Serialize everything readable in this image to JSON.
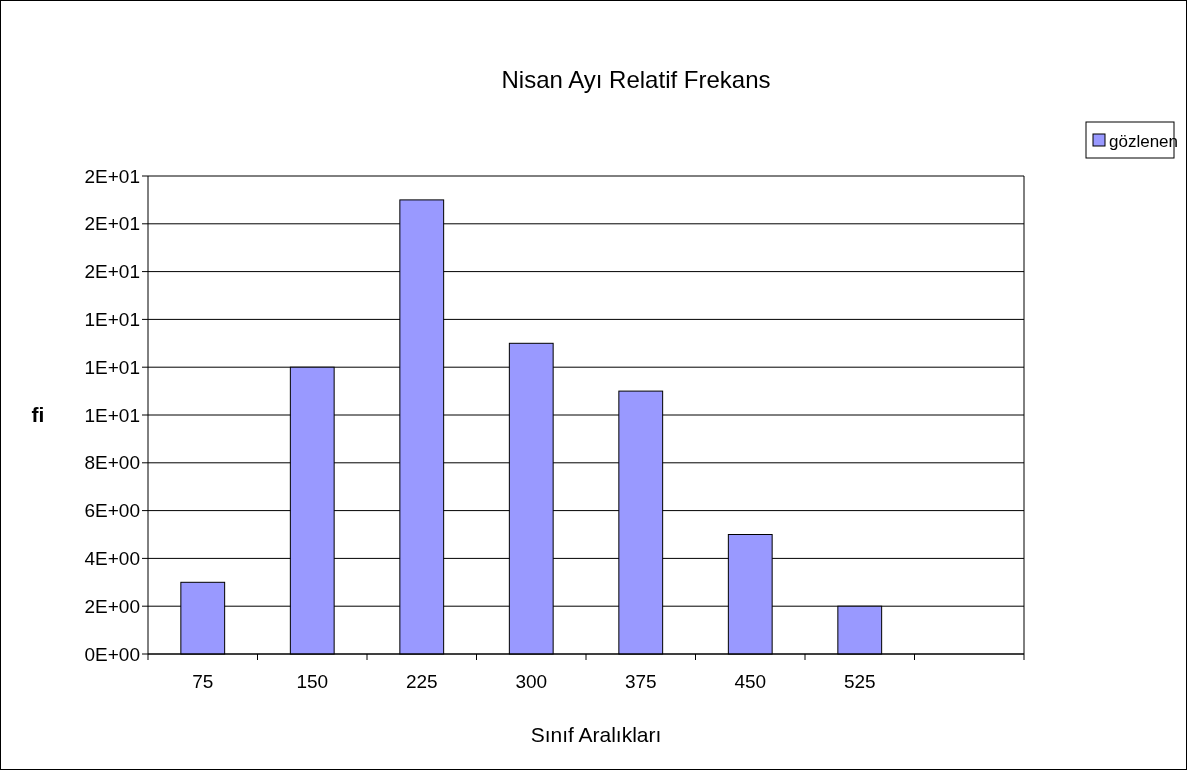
{
  "chart_data": {
    "type": "bar",
    "title": "Nisan Ayı Relatif Frekans",
    "xlabel": "Sınıf Aralıkları",
    "ylabel": "fi",
    "categories": [
      "75",
      "150",
      "225",
      "300",
      "375",
      "450",
      "525",
      null
    ],
    "series": [
      {
        "name": "gözlenen",
        "color": "#9999ff",
        "values": [
          3,
          12,
          19,
          13,
          11,
          5,
          2,
          null
        ]
      }
    ],
    "ylim": [
      0,
      20
    ],
    "yticks": [
      {
        "value": 0,
        "label": "0E+00"
      },
      {
        "value": 2,
        "label": "2E+00"
      },
      {
        "value": 4,
        "label": "4E+00"
      },
      {
        "value": 6,
        "label": "6E+00"
      },
      {
        "value": 8,
        "label": "8E+00"
      },
      {
        "value": 10,
        "label": "1E+01"
      },
      {
        "value": 12,
        "label": "1E+01"
      },
      {
        "value": 14,
        "label": "1E+01"
      },
      {
        "value": 16,
        "label": "2E+01"
      },
      {
        "value": 18,
        "label": "2E+01"
      },
      {
        "value": 20,
        "label": "2E+01"
      }
    ],
    "grid": "y",
    "legend": "right"
  }
}
